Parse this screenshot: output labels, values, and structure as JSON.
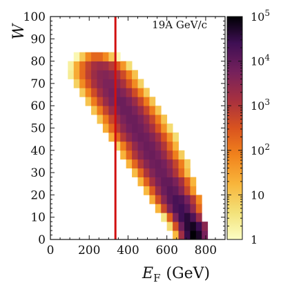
{
  "chart_data": {
    "type": "heatmap",
    "annotation": "19A GeV/c",
    "xlabel_main": "E",
    "xlabel_sub": "F",
    "xlabel_unit": "(GeV)",
    "ylabel": "W",
    "xlim": [
      0,
      900
    ],
    "ylim": [
      0,
      100
    ],
    "x_ticks": [
      0,
      200,
      400,
      600,
      800
    ],
    "y_ticks": [
      0,
      10,
      20,
      30,
      40,
      50,
      60,
      70,
      80,
      90,
      100
    ],
    "bin_width_x": 30,
    "bin_width_y": 4,
    "cut_line_x": 335,
    "cut_line_color": "#d10f0f",
    "colorbar": {
      "scale": "log",
      "range": [
        1,
        100000
      ],
      "ticks": [
        "1",
        "10",
        "10",
        "10",
        "10",
        "10"
      ],
      "tick_exponents": [
        "",
        "",
        "2",
        "3",
        "4",
        "5"
      ],
      "colormap": "inferno_r"
    },
    "rows": [
      {
        "w": 0,
        "x_start": 630,
        "x_end": 810,
        "peak_x": 740,
        "peak_log": 5.0
      },
      {
        "w": 4,
        "x_start": 600,
        "x_end": 810,
        "peak_x": 730,
        "peak_log": 4.8
      },
      {
        "w": 8,
        "x_start": 570,
        "x_end": 780,
        "peak_x": 700,
        "peak_log": 4.6
      },
      {
        "w": 12,
        "x_start": 540,
        "x_end": 780,
        "peak_x": 670,
        "peak_log": 4.4
      },
      {
        "w": 16,
        "x_start": 510,
        "x_end": 780,
        "peak_x": 650,
        "peak_log": 4.3
      },
      {
        "w": 20,
        "x_start": 480,
        "x_end": 750,
        "peak_x": 620,
        "peak_log": 4.1
      },
      {
        "w": 24,
        "x_start": 450,
        "x_end": 750,
        "peak_x": 600,
        "peak_log": 4.0
      },
      {
        "w": 28,
        "x_start": 420,
        "x_end": 720,
        "peak_x": 570,
        "peak_log": 3.9
      },
      {
        "w": 32,
        "x_start": 390,
        "x_end": 720,
        "peak_x": 550,
        "peak_log": 3.9
      },
      {
        "w": 36,
        "x_start": 360,
        "x_end": 690,
        "peak_x": 520,
        "peak_log": 3.9
      },
      {
        "w": 40,
        "x_start": 330,
        "x_end": 660,
        "peak_x": 500,
        "peak_log": 3.9
      },
      {
        "w": 44,
        "x_start": 300,
        "x_end": 660,
        "peak_x": 470,
        "peak_log": 3.9
      },
      {
        "w": 48,
        "x_start": 270,
        "x_end": 630,
        "peak_x": 440,
        "peak_log": 3.9
      },
      {
        "w": 52,
        "x_start": 240,
        "x_end": 600,
        "peak_x": 420,
        "peak_log": 3.9
      },
      {
        "w": 56,
        "x_start": 210,
        "x_end": 570,
        "peak_x": 390,
        "peak_log": 3.9
      },
      {
        "w": 60,
        "x_start": 180,
        "x_end": 540,
        "peak_x": 360,
        "peak_log": 3.9
      },
      {
        "w": 64,
        "x_start": 150,
        "x_end": 510,
        "peak_x": 330,
        "peak_log": 3.8
      },
      {
        "w": 68,
        "x_start": 120,
        "x_end": 480,
        "peak_x": 300,
        "peak_log": 3.7
      },
      {
        "w": 72,
        "x_start": 90,
        "x_end": 450,
        "peak_x": 280,
        "peak_log": 3.6
      },
      {
        "w": 76,
        "x_start": 90,
        "x_end": 420,
        "peak_x": 260,
        "peak_log": 3.3
      },
      {
        "w": 80,
        "x_start": 120,
        "x_end": 360,
        "peak_x": 240,
        "peak_log": 2.3
      }
    ]
  }
}
